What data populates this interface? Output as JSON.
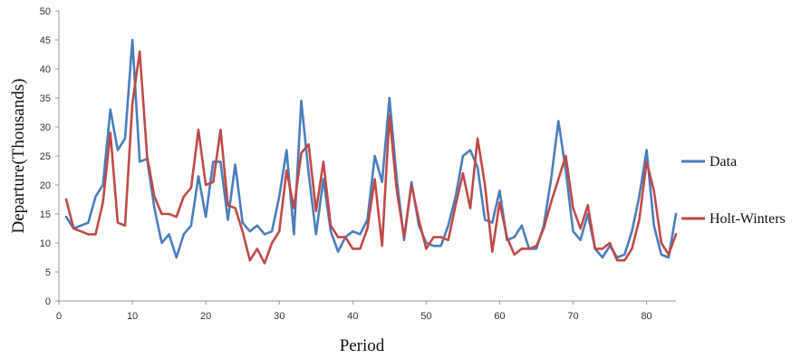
{
  "chart_data": {
    "type": "line",
    "xlabel": "Period",
    "ylabel": "Departure(Thousands)",
    "xlim": [
      0,
      84
    ],
    "ylim": [
      0,
      50
    ],
    "x_ticks": [
      0,
      10,
      20,
      30,
      40,
      50,
      60,
      70,
      80
    ],
    "y_ticks": [
      0,
      5,
      10,
      15,
      20,
      25,
      30,
      35,
      40,
      45,
      50
    ],
    "grid": false,
    "legend_position": "right",
    "x": [
      1,
      2,
      3,
      4,
      5,
      6,
      7,
      8,
      9,
      10,
      11,
      12,
      13,
      14,
      15,
      16,
      17,
      18,
      19,
      20,
      21,
      22,
      23,
      24,
      25,
      26,
      27,
      28,
      29,
      30,
      31,
      32,
      33,
      34,
      35,
      36,
      37,
      38,
      39,
      40,
      41,
      42,
      43,
      44,
      45,
      46,
      47,
      48,
      49,
      50,
      51,
      52,
      53,
      54,
      55,
      56,
      57,
      58,
      59,
      60,
      61,
      62,
      63,
      64,
      65,
      66,
      67,
      68,
      69,
      70,
      71,
      72,
      73,
      74,
      75,
      76,
      77,
      78,
      79,
      80,
      81,
      82,
      83,
      84
    ],
    "series": [
      {
        "name": "Data",
        "color": "#4a7ebb",
        "values": [
          14.5,
          12.5,
          13,
          13.5,
          18,
          20,
          33,
          26,
          28,
          45,
          24,
          24.5,
          16,
          10,
          11.5,
          7.5,
          11.5,
          13,
          21.5,
          14.5,
          24,
          24,
          14,
          23.5,
          13.5,
          12,
          13,
          11.5,
          12,
          18,
          26,
          11.5,
          34.5,
          22,
          11.5,
          21,
          12,
          8.5,
          11,
          12,
          11.5,
          14,
          25,
          20.5,
          35,
          21,
          10.5,
          20.5,
          13,
          10,
          9.5,
          9.5,
          13,
          18,
          25,
          26,
          23,
          14,
          13.5,
          19,
          10.5,
          11,
          13,
          9,
          9,
          13,
          21,
          31,
          22.5,
          12,
          10.5,
          15,
          9,
          7.5,
          9.5,
          7.5,
          8,
          12,
          18,
          26,
          13,
          8,
          7.5,
          15
        ]
      },
      {
        "name": "Holt-Winters",
        "color": "#be4b48",
        "values": [
          17.5,
          12.5,
          12,
          11.5,
          11.5,
          17,
          29,
          13.5,
          13,
          34,
          43,
          25,
          18,
          15,
          15,
          14.5,
          18,
          19.5,
          29.5,
          20,
          20.5,
          29.5,
          16.5,
          16,
          12,
          7,
          9,
          6.5,
          10,
          12,
          22.5,
          16,
          25.5,
          27,
          15.5,
          24,
          13,
          11,
          11,
          9,
          9,
          12.5,
          21,
          9.5,
          32,
          19,
          11,
          20,
          14,
          9,
          11,
          11,
          10.5,
          16.5,
          22,
          16,
          28,
          20,
          8.5,
          17,
          11,
          8,
          9,
          9,
          9.5,
          12.5,
          17,
          21,
          25,
          16,
          12.5,
          16.5,
          9,
          9,
          10,
          7,
          7,
          9,
          14,
          24,
          19,
          10,
          8,
          11.5
        ]
      }
    ]
  }
}
